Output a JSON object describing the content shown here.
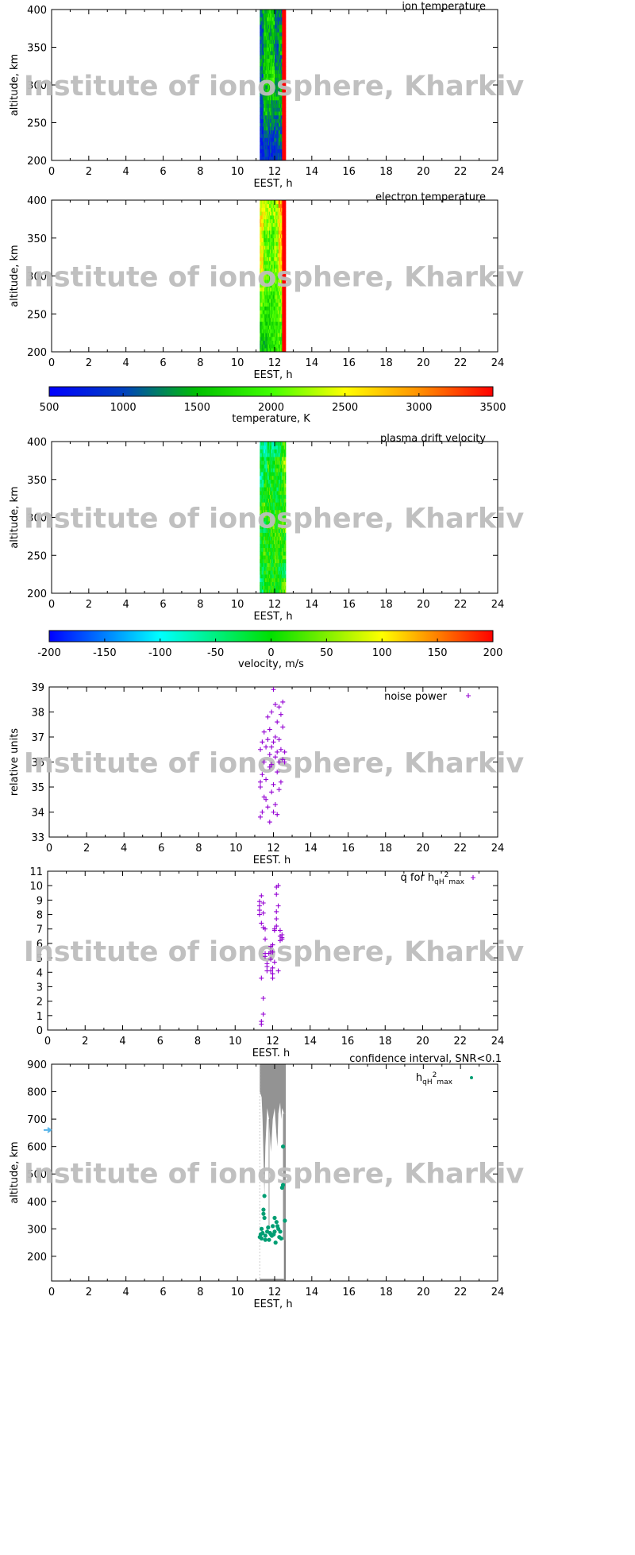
{
  "watermark": "Institute of ionosphere, Kharkiv",
  "chart_data": [
    {
      "id": "ion-temperature",
      "type": "heatmap",
      "title": "ion temperature",
      "xlabel": "EEST, h",
      "ylabel": "altitude, km",
      "xlim": [
        0,
        24
      ],
      "ylim": [
        200,
        400
      ],
      "xticks": [
        "0",
        "2",
        "4",
        "6",
        "8",
        "10",
        "12",
        "14",
        "16",
        "18",
        "20",
        "22",
        "24"
      ],
      "yticks": [
        "200",
        "250",
        "300",
        "350",
        "400"
      ],
      "colorbar": "temperature",
      "x_bins": [
        11.2,
        11.4,
        11.6,
        11.8,
        12.0,
        12.2,
        12.4
      ],
      "bin_width_h": 0.2,
      "y_bins": [
        200,
        220,
        240,
        260,
        280,
        300,
        320,
        340,
        360,
        380
      ],
      "bin_height_km": 20,
      "values": [
        [
          800,
          800,
          900,
          1000,
          1100,
          1200,
          1300,
          1200,
          1100,
          1300
        ],
        [
          900,
          1000,
          1400,
          1600,
          1500,
          1700,
          1600,
          1500,
          1600,
          1500
        ],
        [
          900,
          1000,
          1300,
          1500,
          1700,
          1800,
          1600,
          1700,
          1500,
          1800
        ],
        [
          800,
          900,
          1200,
          1400,
          1600,
          1900,
          1700,
          1500,
          1600,
          1700
        ],
        [
          900,
          1000,
          1100,
          1300,
          1500,
          1400,
          1200,
          1100,
          1300,
          1200
        ],
        [
          1000,
          1200,
          1300,
          1400,
          1500,
          1400,
          1300,
          1500,
          1400,
          1200
        ],
        [
          3500,
          3500,
          3500,
          3500,
          3500,
          3500,
          3500,
          3500,
          3500,
          3500
        ]
      ]
    },
    {
      "id": "electron-temperature",
      "type": "heatmap",
      "title": "electron temperature",
      "xlabel": "EEST, h",
      "ylabel": "altitude, km",
      "xlim": [
        0,
        24
      ],
      "ylim": [
        200,
        400
      ],
      "xticks": [
        "0",
        "2",
        "4",
        "6",
        "8",
        "10",
        "12",
        "14",
        "16",
        "18",
        "20",
        "22",
        "24"
      ],
      "yticks": [
        "200",
        "250",
        "300",
        "350",
        "400"
      ],
      "colorbar": "temperature",
      "x_bins": [
        11.2,
        11.4,
        11.6,
        11.8,
        12.0,
        12.2,
        12.4
      ],
      "bin_width_h": 0.2,
      "y_bins": [
        200,
        220,
        240,
        260,
        280,
        300,
        320,
        340,
        360,
        380
      ],
      "bin_height_km": 20,
      "values": [
        [
          1600,
          1700,
          1900,
          2100,
          2300,
          2500,
          2600,
          2400,
          2700,
          2500
        ],
        [
          1600,
          1700,
          1800,
          2000,
          2100,
          2000,
          2200,
          1900,
          2300,
          2400
        ],
        [
          1700,
          1800,
          1800,
          1900,
          2000,
          2100,
          2100,
          2000,
          2200,
          2300
        ],
        [
          1800,
          1800,
          1900,
          1800,
          1900,
          2000,
          2000,
          1900,
          2100,
          2200
        ],
        [
          1800,
          1900,
          2000,
          2000,
          2100,
          2100,
          2200,
          2200,
          2300,
          2300
        ],
        [
          1900,
          2000,
          2100,
          2200,
          2300,
          2600,
          2700,
          2800,
          2600,
          2900
        ],
        [
          3500,
          3500,
          3500,
          3500,
          3500,
          3500,
          3500,
          3500,
          3500,
          3500
        ]
      ]
    },
    {
      "id": "temperature-colorbar",
      "type": "colorbar",
      "label": "temperature, K",
      "range": [
        500,
        3500
      ],
      "ticks": [
        "500",
        "1000",
        "1500",
        "2000",
        "2500",
        "3000",
        "3500"
      ],
      "stops": [
        [
          500,
          "#0000ff"
        ],
        [
          1000,
          "#0040c0"
        ],
        [
          1500,
          "#00c000"
        ],
        [
          2000,
          "#40ff00"
        ],
        [
          2500,
          "#ffff00"
        ],
        [
          3000,
          "#ff9000"
        ],
        [
          3500,
          "#ff0000"
        ]
      ]
    },
    {
      "id": "plasma-drift-velocity",
      "type": "heatmap",
      "title": "plasma drift velocity",
      "xlabel": "EEST, h",
      "ylabel": "altitude, km",
      "xlim": [
        0,
        24
      ],
      "ylim": [
        200,
        400
      ],
      "xticks": [
        "0",
        "2",
        "4",
        "6",
        "8",
        "10",
        "12",
        "14",
        "16",
        "18",
        "20",
        "22",
        "24"
      ],
      "yticks": [
        "200",
        "250",
        "300",
        "350",
        "400"
      ],
      "colorbar": "velocity",
      "x_bins": [
        11.2,
        11.4,
        11.6,
        11.8,
        12.0,
        12.2,
        12.4
      ],
      "bin_width_h": 0.2,
      "y_bins": [
        200,
        220,
        240,
        260,
        280,
        300,
        320,
        340,
        360,
        380
      ],
      "bin_height_km": 20,
      "values": [
        [
          -40,
          -20,
          -10,
          0,
          -30,
          10,
          -20,
          -60,
          -10,
          -50
        ],
        [
          10,
          -10,
          20,
          0,
          -20,
          30,
          -10,
          0,
          -40,
          -80
        ],
        [
          0,
          20,
          10,
          -10,
          10,
          0,
          20,
          -20,
          10,
          -30
        ],
        [
          20,
          0,
          -10,
          10,
          30,
          -10,
          0,
          10,
          -30,
          -60
        ],
        [
          -10,
          10,
          30,
          20,
          0,
          10,
          -20,
          0,
          20,
          -40
        ],
        [
          10,
          -20,
          0,
          30,
          10,
          20,
          0,
          -10,
          10,
          -20
        ],
        [
          30,
          -40,
          20,
          10,
          40,
          0,
          10,
          30,
          60,
          20
        ]
      ]
    },
    {
      "id": "velocity-colorbar",
      "type": "colorbar",
      "label": "velocity, m/s",
      "range": [
        -200,
        200
      ],
      "ticks": [
        "-200",
        "-150",
        "-100",
        "-50",
        "0",
        "50",
        "100",
        "150",
        "200"
      ],
      "stops": [
        [
          -200,
          "#0000ff"
        ],
        [
          -100,
          "#00ffff"
        ],
        [
          0,
          "#00e000"
        ],
        [
          100,
          "#ffff00"
        ],
        [
          200,
          "#ff0000"
        ]
      ]
    },
    {
      "id": "noise-power",
      "type": "scatter",
      "legend": "noise power",
      "legend_position": "top-right",
      "xlabel": "EEST. h",
      "ylabel": "relative units",
      "xlim": [
        0,
        24
      ],
      "ylim": [
        33,
        39
      ],
      "xticks": [
        "0",
        "2",
        "4",
        "6",
        "8",
        "10",
        "12",
        "14",
        "16",
        "18",
        "20",
        "22",
        "24"
      ],
      "yticks": [
        "33",
        "34",
        "35",
        "36",
        "37",
        "38",
        "39"
      ],
      "color": "#9400d3",
      "points": [
        [
          11.3,
          36.5
        ],
        [
          11.3,
          35.2
        ],
        [
          11.3,
          35.0
        ],
        [
          11.3,
          33.8
        ],
        [
          11.4,
          34.0
        ],
        [
          11.4,
          35.5
        ],
        [
          11.5,
          36.0
        ],
        [
          11.5,
          37.2
        ],
        [
          11.6,
          36.6
        ],
        [
          11.6,
          34.5
        ],
        [
          11.6,
          35.3
        ],
        [
          11.7,
          37.8
        ],
        [
          11.7,
          36.9
        ],
        [
          11.7,
          34.2
        ],
        [
          11.8,
          35.8
        ],
        [
          11.8,
          36.3
        ],
        [
          11.8,
          33.6
        ],
        [
          11.9,
          38.0
        ],
        [
          11.9,
          35.9
        ],
        [
          11.9,
          34.8
        ],
        [
          12.0,
          36.8
        ],
        [
          12.0,
          35.1
        ],
        [
          12.0,
          34.0
        ],
        [
          12.0,
          38.9
        ],
        [
          12.1,
          38.3
        ],
        [
          12.1,
          37.0
        ],
        [
          12.1,
          36.2
        ],
        [
          12.1,
          34.3
        ],
        [
          12.2,
          37.6
        ],
        [
          12.2,
          35.6
        ],
        [
          12.2,
          33.9
        ],
        [
          12.3,
          36.0
        ],
        [
          12.3,
          36.9
        ],
        [
          12.3,
          34.9
        ],
        [
          12.3,
          38.2
        ],
        [
          12.4,
          36.5
        ],
        [
          12.4,
          35.2
        ],
        [
          12.5,
          37.4
        ],
        [
          12.5,
          36.1
        ],
        [
          12.5,
          38.4
        ],
        [
          12.6,
          36.4
        ],
        [
          12.4,
          37.9
        ],
        [
          11.5,
          34.6
        ],
        [
          11.9,
          36.6
        ],
        [
          12.2,
          36.4
        ],
        [
          11.4,
          36.8
        ],
        [
          11.8,
          37.3
        ],
        [
          12.6,
          36.0
        ]
      ]
    },
    {
      "id": "q-for-hmax",
      "type": "scatter",
      "legend_parts": {
        "main": "q for h",
        "sub1": "qH",
        "sup": "2",
        "sub2": "max"
      },
      "legend_position": "top-right",
      "xlabel": "EEST. h",
      "xlim": [
        0,
        24
      ],
      "ylim": [
        0,
        11
      ],
      "xticks": [
        "0",
        "2",
        "4",
        "6",
        "8",
        "10",
        "12",
        "14",
        "16",
        "18",
        "20",
        "22",
        "24"
      ],
      "yticks": [
        "0",
        "1",
        "2",
        "3",
        "4",
        "5",
        "6",
        "7",
        "8",
        "9",
        "10",
        "11"
      ],
      "color": "#9400d3",
      "points": [
        [
          11.3,
          8.9
        ],
        [
          11.3,
          8.6
        ],
        [
          11.4,
          9.3
        ],
        [
          11.3,
          8.3
        ],
        [
          11.3,
          8.0
        ],
        [
          11.4,
          7.4
        ],
        [
          11.5,
          8.8
        ],
        [
          11.5,
          8.1
        ],
        [
          11.5,
          7.1
        ],
        [
          11.6,
          7.0
        ],
        [
          11.6,
          6.3
        ],
        [
          11.4,
          3.6
        ],
        [
          11.5,
          2.2
        ],
        [
          11.5,
          1.1
        ],
        [
          11.4,
          0.6
        ],
        [
          11.4,
          0.4
        ],
        [
          11.6,
          5.3
        ],
        [
          11.6,
          5.1
        ],
        [
          11.7,
          4.4
        ],
        [
          11.7,
          4.1
        ],
        [
          11.7,
          4.6
        ],
        [
          11.8,
          5.3
        ],
        [
          11.9,
          5.8
        ],
        [
          11.9,
          5.4
        ],
        [
          11.9,
          4.9
        ],
        [
          11.9,
          4.1
        ],
        [
          12.0,
          5.4
        ],
        [
          12.0,
          3.6
        ],
        [
          12.0,
          3.9
        ],
        [
          12.1,
          4.7
        ],
        [
          12.0,
          4.3
        ],
        [
          12.0,
          5.9
        ],
        [
          12.1,
          6.9
        ],
        [
          12.1,
          7.0
        ],
        [
          12.2,
          7.2
        ],
        [
          12.2,
          9.4
        ],
        [
          12.2,
          9.9
        ],
        [
          12.3,
          10.0
        ],
        [
          12.3,
          8.6
        ],
        [
          12.2,
          8.2
        ],
        [
          12.2,
          7.7
        ],
        [
          12.3,
          4.1
        ],
        [
          12.4,
          6.5
        ],
        [
          12.4,
          6.9
        ],
        [
          12.5,
          6.4
        ],
        [
          12.5,
          6.6
        ],
        [
          12.5,
          6.3
        ],
        [
          12.4,
          6.2
        ]
      ]
    },
    {
      "id": "hmax",
      "type": "scatter",
      "title": "confidence interval, SNR<0.1",
      "legend_parts": {
        "main": "h",
        "sub1": "qH",
        "sup": "2",
        "sub2": "max"
      },
      "legend_position": "top-right",
      "xlabel": "EEST, h",
      "ylabel": "altitude, km",
      "xlim": [
        0,
        24
      ],
      "ylim": [
        110,
        900
      ],
      "xticks": [
        "0",
        "2",
        "4",
        "6",
        "8",
        "10",
        "12",
        "14",
        "16",
        "18",
        "20",
        "22",
        "24"
      ],
      "yticks": [
        "200",
        "300",
        "400",
        "500",
        "600",
        "700",
        "800",
        "900"
      ],
      "color": "#009e73",
      "band_color": "#808080",
      "marker_arrow_altitude": 660,
      "marker_arrow_color": "#56b4e9",
      "confidence_band_lower_edge": [
        [
          11.2,
          800
        ],
        [
          11.3,
          780
        ],
        [
          11.35,
          700
        ],
        [
          11.4,
          560
        ],
        [
          11.45,
          420
        ],
        [
          11.5,
          600
        ],
        [
          11.6,
          740
        ],
        [
          11.7,
          700
        ],
        [
          11.75,
          640
        ],
        [
          11.8,
          580
        ],
        [
          11.9,
          700
        ],
        [
          12.0,
          740
        ],
        [
          12.1,
          640
        ],
        [
          12.15,
          600
        ],
        [
          12.2,
          720
        ],
        [
          12.3,
          760
        ],
        [
          12.35,
          700
        ],
        [
          12.4,
          740
        ],
        [
          12.5,
          720
        ],
        [
          12.6,
          720
        ]
      ],
      "confidence_band_bottom": {
        "x": [
          12.5,
          12.6
        ],
        "alt": [
          110,
          260
        ]
      },
      "points": [
        [
          11.2,
          270
        ],
        [
          11.25,
          280
        ],
        [
          11.3,
          265
        ],
        [
          11.3,
          300
        ],
        [
          11.35,
          285
        ],
        [
          11.4,
          370
        ],
        [
          11.4,
          355
        ],
        [
          11.45,
          340
        ],
        [
          11.45,
          420
        ],
        [
          11.5,
          260
        ],
        [
          11.5,
          275
        ],
        [
          11.6,
          290
        ],
        [
          11.65,
          305
        ],
        [
          11.7,
          260
        ],
        [
          11.75,
          285
        ],
        [
          11.8,
          280
        ],
        [
          11.85,
          275
        ],
        [
          11.9,
          310
        ],
        [
          11.95,
          280
        ],
        [
          12.0,
          340
        ],
        [
          12.0,
          290
        ],
        [
          12.05,
          250
        ],
        [
          12.1,
          325
        ],
        [
          12.15,
          310
        ],
        [
          12.2,
          300
        ],
        [
          12.25,
          270
        ],
        [
          12.3,
          290
        ],
        [
          12.35,
          265
        ],
        [
          12.4,
          450
        ],
        [
          12.45,
          460
        ],
        [
          12.45,
          600
        ],
        [
          12.55,
          330
        ]
      ]
    }
  ]
}
